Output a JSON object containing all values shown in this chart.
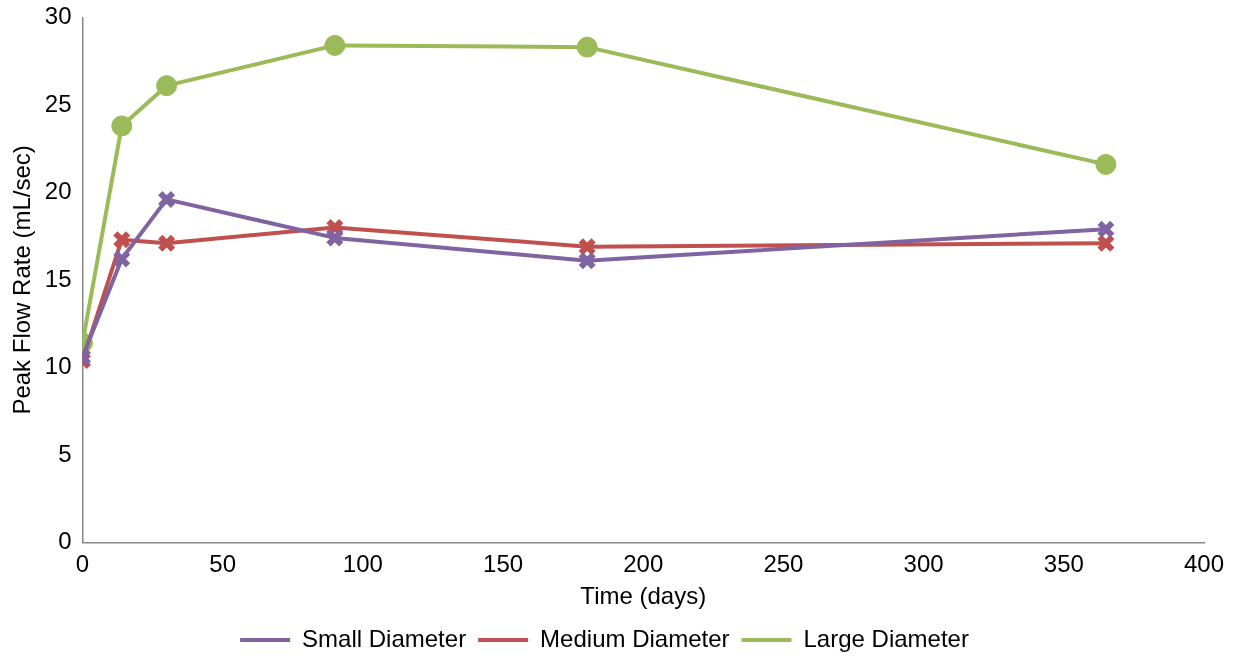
{
  "chart_data": {
    "type": "line",
    "xlabel": "Time (days)",
    "ylabel": "Peak Flow Rate (mL/sec)",
    "x": [
      0,
      14,
      30,
      90,
      180,
      365
    ],
    "series": [
      {
        "name": "Small Diameter",
        "color": "#8064a2",
        "marker": "cross",
        "values": [
          10.6,
          16.2,
          19.6,
          17.4,
          16.1,
          17.9
        ]
      },
      {
        "name": "Medium Diameter",
        "color": "#c0504d",
        "marker": "cross",
        "values": [
          10.4,
          17.3,
          17.1,
          18.0,
          16.9,
          17.1
        ]
      },
      {
        "name": "Large Diameter",
        "color": "#9bbb59",
        "marker": "circle",
        "values": [
          11.4,
          23.8,
          26.1,
          28.4,
          28.3,
          21.6
        ]
      }
    ],
    "xlim": [
      0,
      400
    ],
    "xticks": [
      0,
      50,
      100,
      150,
      200,
      250,
      300,
      350,
      400
    ],
    "ylim": [
      0,
      30
    ],
    "yticks": [
      0,
      5,
      10,
      15,
      20,
      25,
      30
    ],
    "grid": false,
    "legend": "bottom"
  }
}
